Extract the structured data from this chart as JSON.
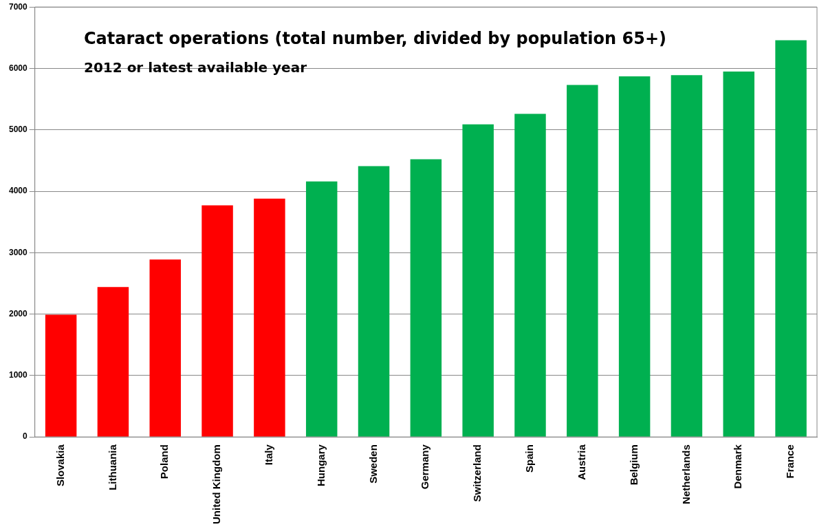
{
  "chart_data": {
    "type": "bar",
    "title": "Cataract operations (total number, divided by population 65+)",
    "subtitle": "2012 or latest available year",
    "categories": [
      "Slovakia",
      "Lithuania",
      "Poland",
      "United Kingdom",
      "Italy",
      "Hungary",
      "Sweden",
      "Germany",
      "Switzerland",
      "Spain",
      "Austria",
      "Belgium",
      "Netherlands",
      "Denmark",
      "France"
    ],
    "values": [
      1990,
      2440,
      2890,
      3770,
      3880,
      4160,
      4410,
      4520,
      5090,
      5260,
      5730,
      5870,
      5890,
      5950,
      6460
    ],
    "colors": [
      "#ff0000",
      "#ff0000",
      "#ff0000",
      "#ff0000",
      "#ff0000",
      "#00b050",
      "#00b050",
      "#00b050",
      "#00b050",
      "#00b050",
      "#00b050",
      "#00b050",
      "#00b050",
      "#00b050",
      "#00b050"
    ],
    "ylim": [
      0,
      7000
    ],
    "yticks": [
      0,
      1000,
      2000,
      3000,
      4000,
      5000,
      6000,
      7000
    ],
    "grid": "y",
    "legend": false
  }
}
